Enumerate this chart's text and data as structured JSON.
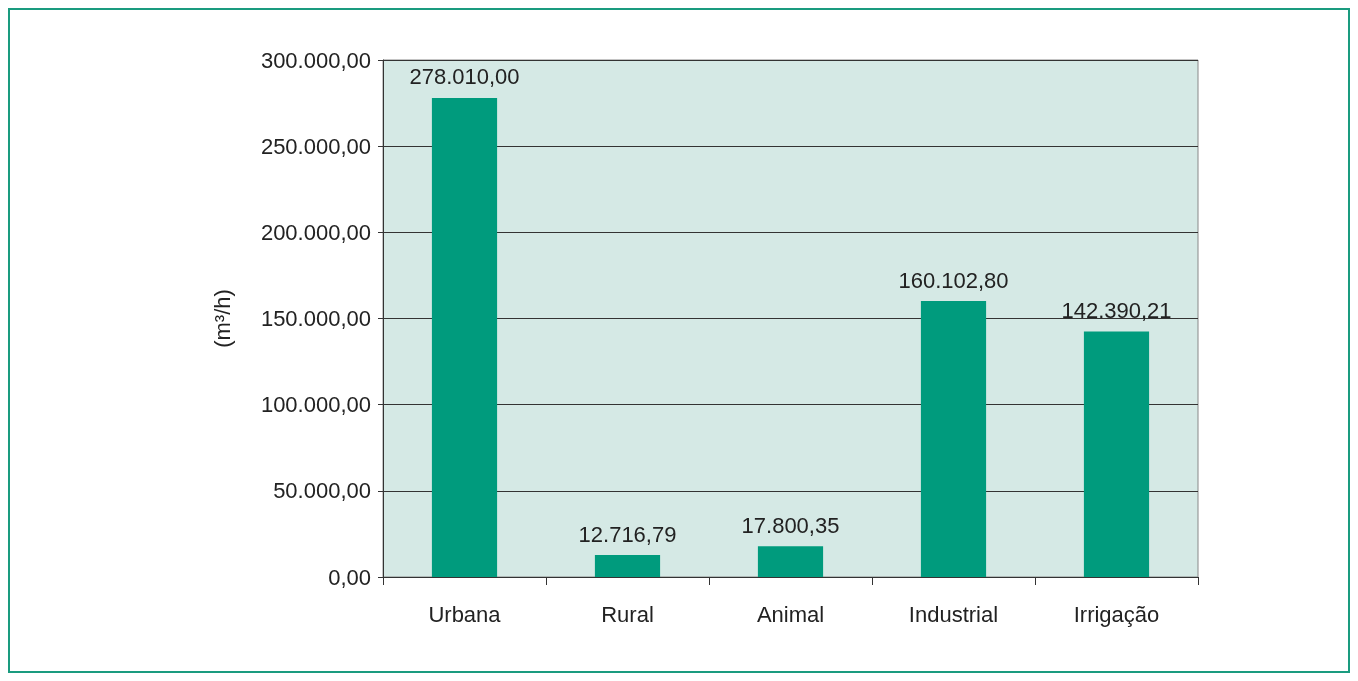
{
  "chart_data": {
    "type": "bar",
    "ylabel": "(m³/h)",
    "categories": [
      "Urbana",
      "Rural",
      "Animal",
      "Industrial",
      "Irrigação"
    ],
    "values": [
      278010,
      12716.79,
      17800.35,
      160102.8,
      142390.21
    ],
    "value_labels": [
      "278.010,00",
      "12.716,79",
      "17.800,35",
      "160.102,80",
      "142.390,21"
    ],
    "color": "#009b7d",
    "ylim": [
      0,
      300000
    ],
    "yticks": [
      {
        "value": 0,
        "label": "0,00"
      },
      {
        "value": 50000,
        "label": "50.000,00"
      },
      {
        "value": 100000,
        "label": "100.000,00"
      },
      {
        "value": 150000,
        "label": "150.000,00"
      },
      {
        "value": 200000,
        "label": "200.000,00"
      },
      {
        "value": 250000,
        "label": "250.000,00"
      },
      {
        "value": 300000,
        "label": "300.000,00"
      }
    ],
    "grid": "y"
  }
}
